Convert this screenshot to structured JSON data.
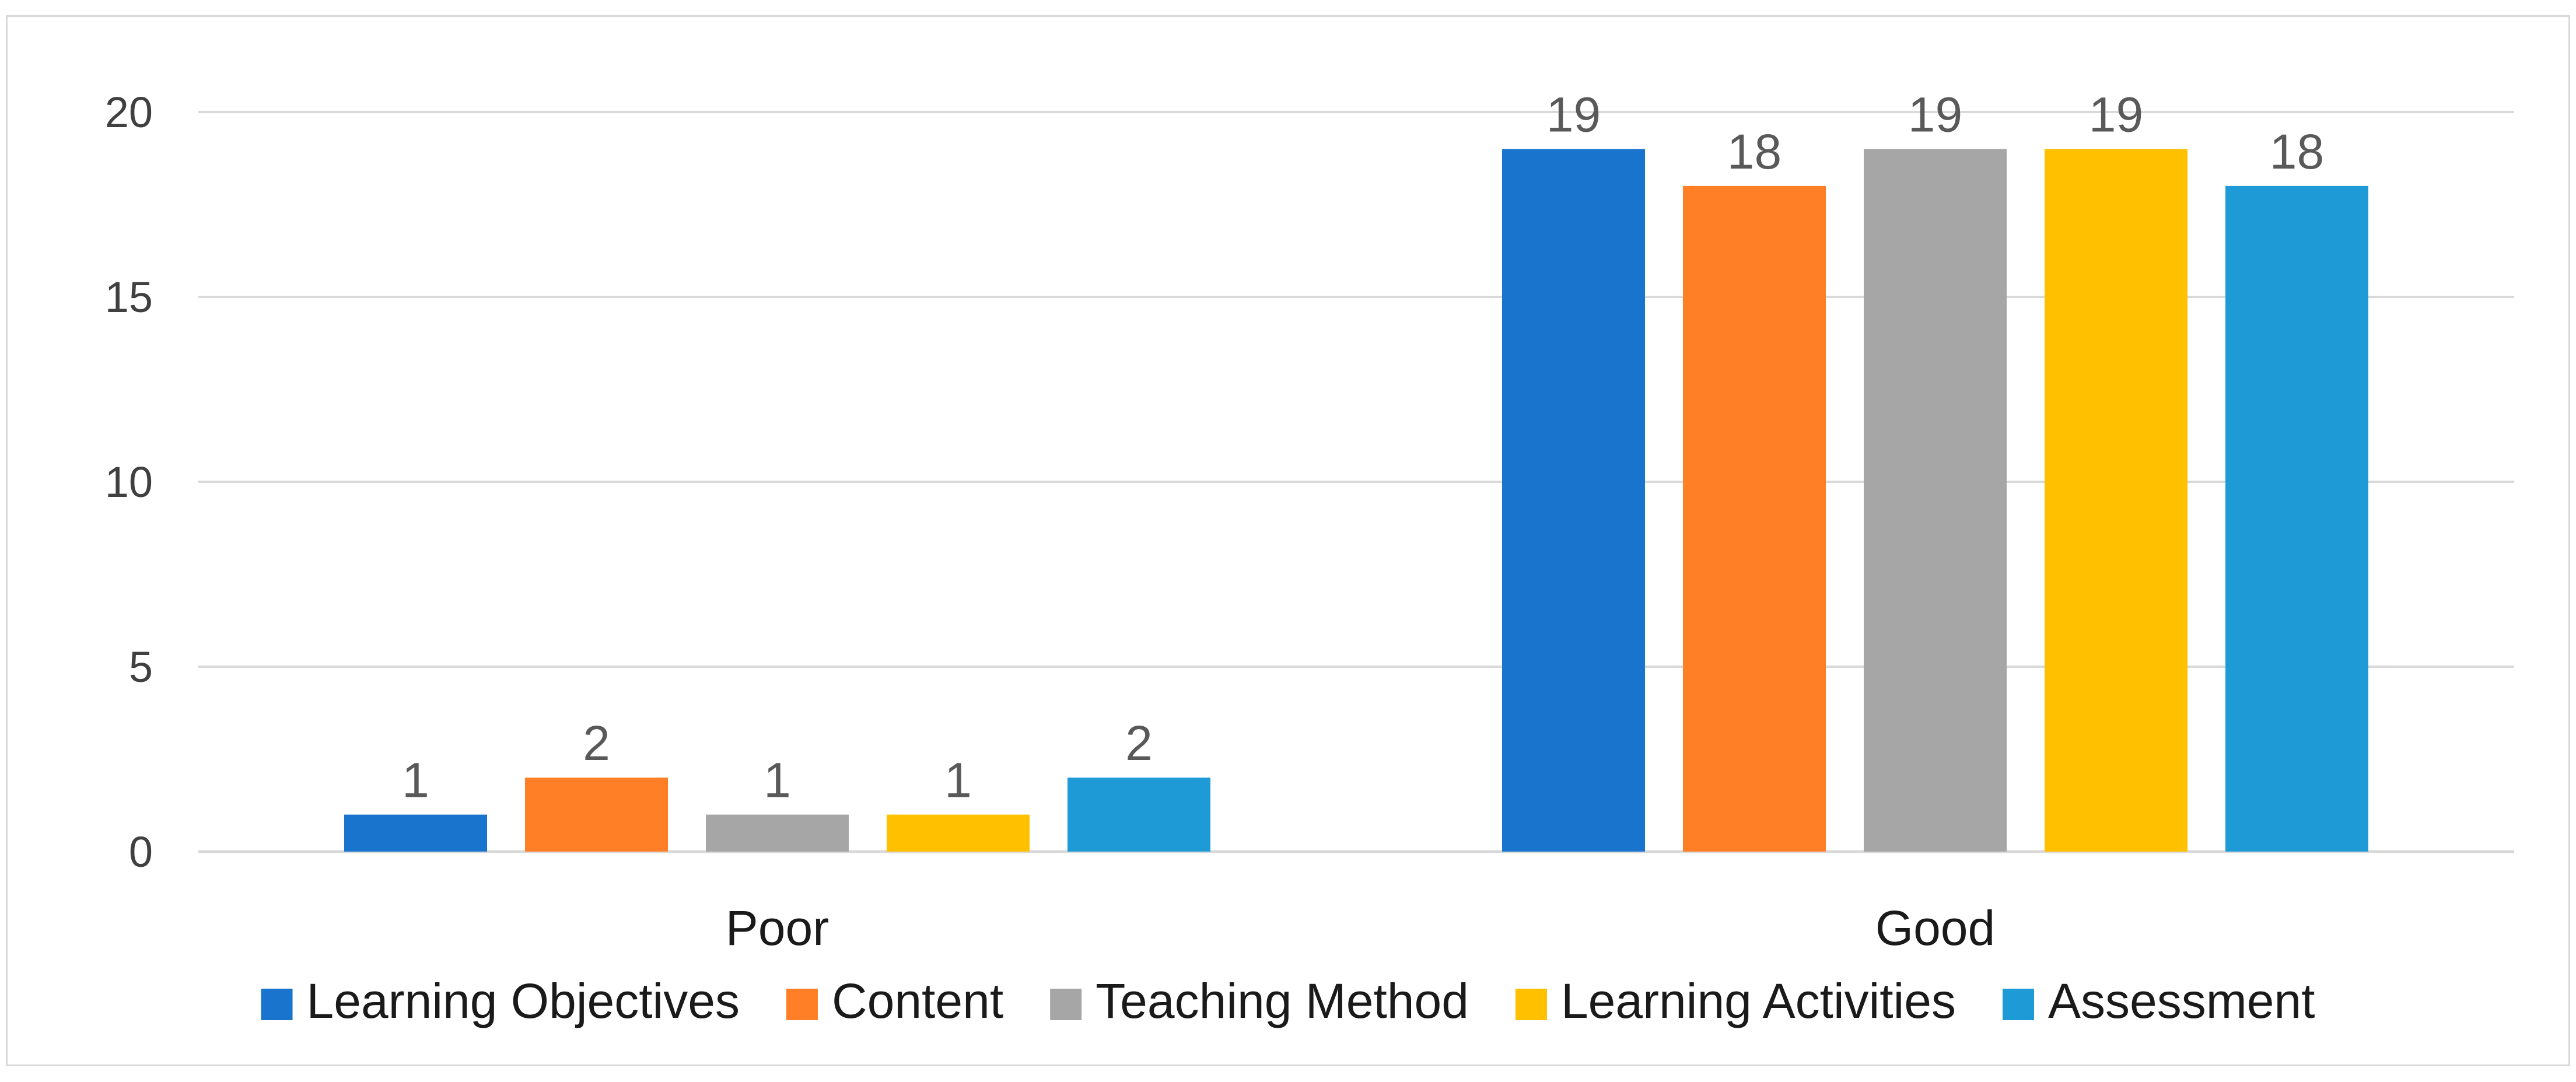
{
  "chart_data": {
    "type": "bar",
    "categories": [
      "Poor",
      "Good"
    ],
    "series": [
      {
        "name": "Learning Objectives",
        "values": [
          1,
          19
        ],
        "color": "#1874CD"
      },
      {
        "name": "Content",
        "values": [
          2,
          18
        ],
        "color": "#FF7F27"
      },
      {
        "name": "Teaching Method",
        "values": [
          1,
          19
        ],
        "color": "#A6A6A6"
      },
      {
        "name": "Learning Activities",
        "values": [
          1,
          19
        ],
        "color": "#FFC000"
      },
      {
        "name": "Assessment",
        "values": [
          2,
          18
        ],
        "color": "#1E9BD7"
      }
    ],
    "yticks": [
      0,
      5,
      10,
      15,
      20
    ],
    "ylim": [
      0,
      20
    ],
    "grid": true,
    "legend_position": "bottom",
    "data_labels": true,
    "gridline_color": "#d9d9d9"
  }
}
